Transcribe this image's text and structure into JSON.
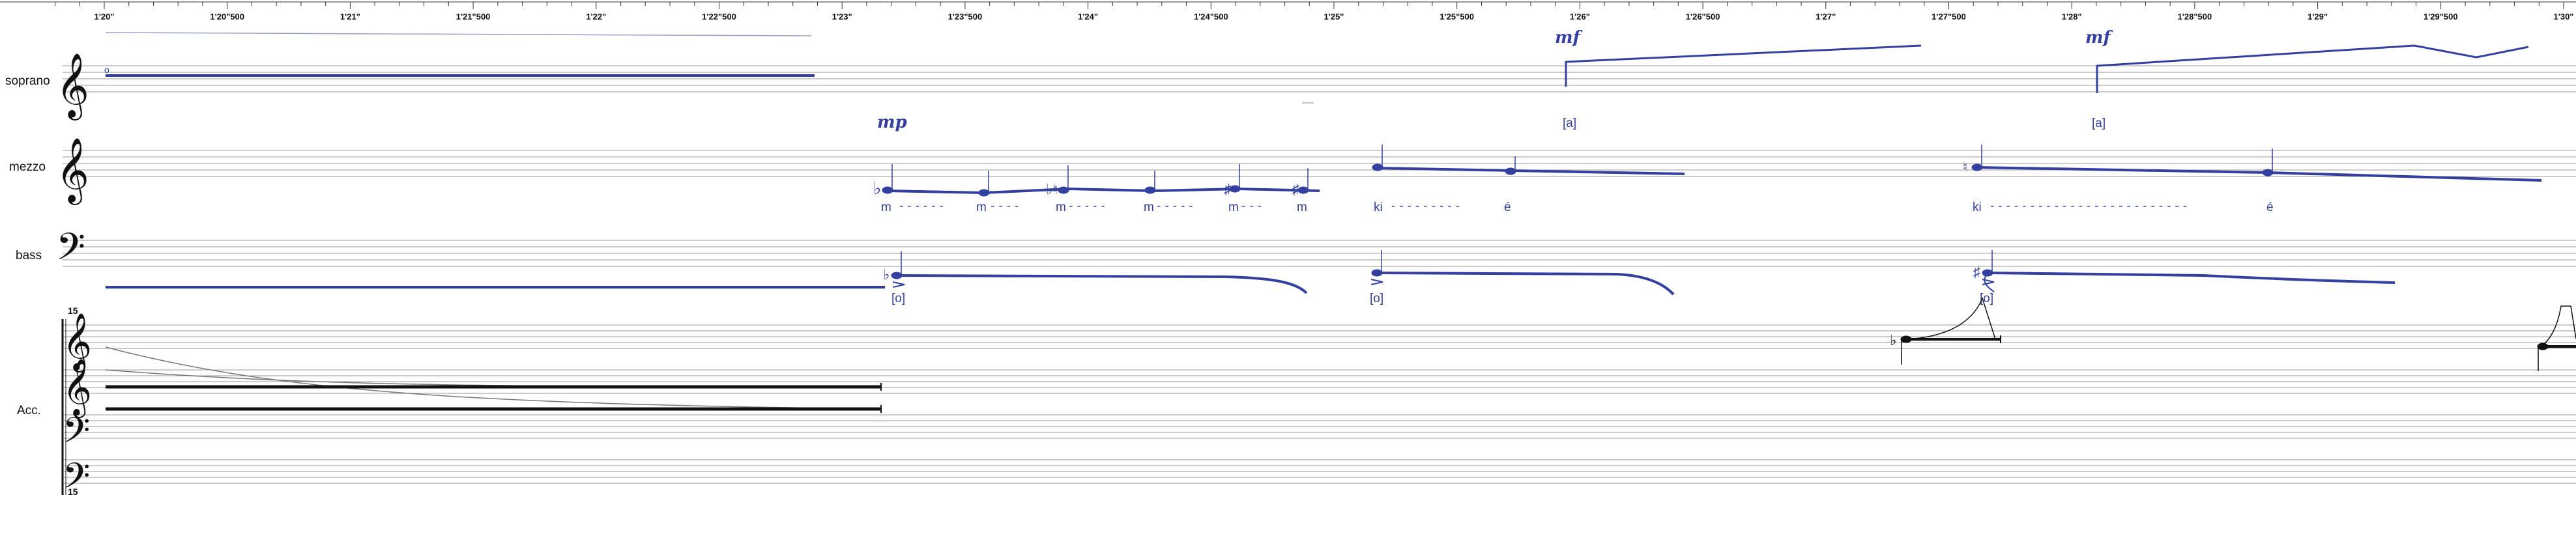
{
  "ruler": {
    "labels": [
      "1'20\"",
      "1'20\"500",
      "1'21\"",
      "1'21\"500",
      "1'22\"",
      "1'22\"500",
      "1'23\"",
      "1'23\"500",
      "1'24\"",
      "1'24\"500",
      "1'25\"",
      "1'25\"500",
      "1'26\"",
      "1'26\"500",
      "1'27\"",
      "1'27\"500",
      "1'28\"",
      "1'28\"500",
      "1'29\"",
      "1'29\"500",
      "1'30\""
    ]
  },
  "staves": {
    "soprano": "soprano",
    "mezzo": "mezzo",
    "bass": "bass",
    "acc": "Acc."
  },
  "ottava": {
    "top": "15",
    "bottom": "15"
  },
  "dynamics": {
    "mezzo": "mp",
    "soprano_1": "mf",
    "soprano_2": "mf"
  },
  "vowels": {
    "soprano_1": "[a]",
    "soprano_2": "[a]",
    "bass_1": "[o]",
    "bass_2": "[o]",
    "bass_3": "[o]"
  },
  "lyrics": {
    "mezzo_m": [
      "m",
      "m",
      "m",
      "m",
      "m",
      "m"
    ],
    "mezzo_ki_1": "ki",
    "mezzo_e_1": "é",
    "mezzo_ki_2": "ki",
    "mezzo_e_2": "é"
  },
  "colors": {
    "voice": "#3340a0",
    "staff": "#999999",
    "ink": "#111111"
  }
}
